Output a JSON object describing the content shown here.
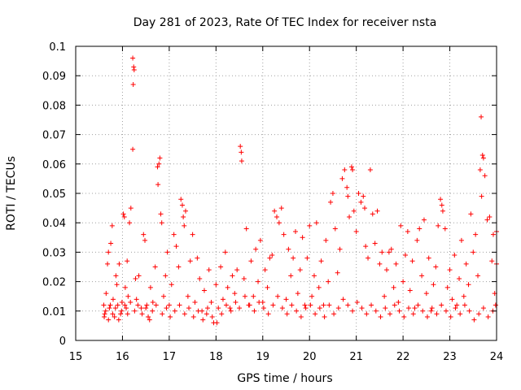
{
  "chart_data": {
    "type": "scatter",
    "title": "Day 281 of 2023, Rate Of TEC Index for receiver nsta",
    "xlabel": "GPS time / hours",
    "ylabel": "ROTI / TECUs",
    "xlim": [
      15,
      24
    ],
    "ylim": [
      0,
      0.1
    ],
    "x_ticks": [
      "15",
      "16",
      "17",
      "18",
      "19",
      "20",
      "21",
      "22",
      "23",
      "24"
    ],
    "y_ticks": [
      "0",
      "0.01",
      "0.02",
      "0.03",
      "0.04",
      "0.05",
      "0.06",
      "0.07",
      "0.08",
      "0.09",
      "0.1"
    ],
    "grid": true,
    "marker": "plus",
    "color": "#ff0000",
    "series": [
      {
        "points": [
          [
            15.6,
            0.012
          ],
          [
            15.62,
            0.009
          ],
          [
            15.65,
            0.016
          ],
          [
            15.68,
            0.026
          ],
          [
            15.7,
            0.03
          ],
          [
            15.72,
            0.011
          ],
          [
            15.75,
            0.033
          ],
          [
            15.78,
            0.039
          ],
          [
            15.8,
            0.014
          ],
          [
            15.83,
            0.008
          ],
          [
            15.86,
            0.022
          ],
          [
            15.88,
            0.019
          ],
          [
            15.9,
            0.012
          ],
          [
            15.93,
            0.026
          ],
          [
            15.96,
            0.009
          ],
          [
            15.99,
            0.013
          ],
          [
            16.02,
            0.043
          ],
          [
            16.04,
            0.042
          ],
          [
            16.06,
            0.018
          ],
          [
            16.08,
            0.011
          ],
          [
            16.1,
            0.027
          ],
          [
            16.12,
            0.015
          ],
          [
            16.15,
            0.04
          ],
          [
            16.18,
            0.045
          ],
          [
            16.22,
            0.096
          ],
          [
            16.24,
            0.093
          ],
          [
            16.25,
            0.092
          ],
          [
            16.23,
            0.087
          ],
          [
            16.22,
            0.065
          ],
          [
            16.28,
            0.021
          ],
          [
            16.3,
            0.014
          ],
          [
            16.35,
            0.022
          ],
          [
            16.4,
            0.011
          ],
          [
            16.45,
            0.036
          ],
          [
            16.48,
            0.034
          ],
          [
            16.52,
            0.012
          ],
          [
            16.55,
            0.008
          ],
          [
            16.6,
            0.018
          ],
          [
            16.65,
            0.013
          ],
          [
            16.7,
            0.025
          ],
          [
            16.75,
            0.059
          ],
          [
            16.78,
            0.06
          ],
          [
            16.8,
            0.062
          ],
          [
            16.76,
            0.053
          ],
          [
            16.82,
            0.043
          ],
          [
            16.84,
            0.04
          ],
          [
            16.88,
            0.015
          ],
          [
            16.92,
            0.022
          ],
          [
            16.96,
            0.03
          ],
          [
            17.0,
            0.012
          ],
          [
            17.05,
            0.019
          ],
          [
            17.1,
            0.036
          ],
          [
            17.15,
            0.032
          ],
          [
            17.2,
            0.025
          ],
          [
            17.25,
            0.048
          ],
          [
            17.28,
            0.046
          ],
          [
            17.3,
            0.042
          ],
          [
            17.32,
            0.039
          ],
          [
            17.35,
            0.044
          ],
          [
            17.4,
            0.015
          ],
          [
            17.45,
            0.027
          ],
          [
            17.5,
            0.036
          ],
          [
            17.55,
            0.013
          ],
          [
            17.6,
            0.028
          ],
          [
            17.65,
            0.021
          ],
          [
            17.7,
            0.01
          ],
          [
            17.75,
            0.017
          ],
          [
            17.8,
            0.009
          ],
          [
            17.85,
            0.024
          ],
          [
            17.9,
            0.013
          ],
          [
            17.95,
            0.006
          ],
          [
            18.0,
            0.019
          ],
          [
            18.05,
            0.011
          ],
          [
            18.1,
            0.025
          ],
          [
            18.15,
            0.014
          ],
          [
            18.2,
            0.03
          ],
          [
            18.25,
            0.018
          ],
          [
            18.3,
            0.011
          ],
          [
            18.35,
            0.022
          ],
          [
            18.4,
            0.016
          ],
          [
            18.45,
            0.024
          ],
          [
            18.52,
            0.066
          ],
          [
            18.54,
            0.064
          ],
          [
            18.55,
            0.061
          ],
          [
            18.6,
            0.021
          ],
          [
            18.65,
            0.038
          ],
          [
            18.7,
            0.012
          ],
          [
            18.75,
            0.027
          ],
          [
            18.8,
            0.015
          ],
          [
            18.85,
            0.031
          ],
          [
            18.9,
            0.02
          ],
          [
            18.95,
            0.034
          ],
          [
            19.0,
            0.013
          ],
          [
            19.05,
            0.024
          ],
          [
            19.1,
            0.018
          ],
          [
            19.15,
            0.028
          ],
          [
            19.2,
            0.029
          ],
          [
            19.25,
            0.044
          ],
          [
            19.3,
            0.042
          ],
          [
            19.35,
            0.04
          ],
          [
            19.4,
            0.045
          ],
          [
            19.45,
            0.036
          ],
          [
            19.5,
            0.014
          ],
          [
            19.55,
            0.031
          ],
          [
            19.6,
            0.022
          ],
          [
            19.65,
            0.028
          ],
          [
            19.7,
            0.037
          ],
          [
            19.75,
            0.016
          ],
          [
            19.8,
            0.024
          ],
          [
            19.85,
            0.035
          ],
          [
            19.9,
            0.012
          ],
          [
            19.95,
            0.028
          ],
          [
            20.0,
            0.039
          ],
          [
            20.05,
            0.015
          ],
          [
            20.1,
            0.022
          ],
          [
            20.15,
            0.04
          ],
          [
            20.2,
            0.018
          ],
          [
            20.25,
            0.027
          ],
          [
            20.3,
            0.012
          ],
          [
            20.35,
            0.034
          ],
          [
            20.4,
            0.02
          ],
          [
            20.45,
            0.047
          ],
          [
            20.5,
            0.05
          ],
          [
            20.55,
            0.038
          ],
          [
            20.6,
            0.023
          ],
          [
            20.65,
            0.031
          ],
          [
            20.7,
            0.055
          ],
          [
            20.75,
            0.058
          ],
          [
            20.8,
            0.052
          ],
          [
            20.82,
            0.049
          ],
          [
            20.85,
            0.042
          ],
          [
            20.9,
            0.059
          ],
          [
            20.92,
            0.058
          ],
          [
            20.95,
            0.044
          ],
          [
            21.0,
            0.037
          ],
          [
            21.05,
            0.05
          ],
          [
            21.1,
            0.047
          ],
          [
            21.15,
            0.049
          ],
          [
            21.18,
            0.045
          ],
          [
            21.2,
            0.032
          ],
          [
            21.25,
            0.028
          ],
          [
            21.3,
            0.058
          ],
          [
            21.35,
            0.043
          ],
          [
            21.4,
            0.033
          ],
          [
            21.45,
            0.044
          ],
          [
            21.5,
            0.026
          ],
          [
            21.55,
            0.03
          ],
          [
            21.6,
            0.015
          ],
          [
            21.65,
            0.024
          ],
          [
            21.7,
            0.03
          ],
          [
            21.75,
            0.031
          ],
          [
            21.8,
            0.018
          ],
          [
            21.85,
            0.026
          ],
          [
            21.9,
            0.013
          ],
          [
            21.95,
            0.039
          ],
          [
            22.0,
            0.02
          ],
          [
            22.05,
            0.029
          ],
          [
            22.1,
            0.037
          ],
          [
            22.15,
            0.017
          ],
          [
            22.2,
            0.027
          ],
          [
            22.25,
            0.011
          ],
          [
            22.3,
            0.034
          ],
          [
            22.35,
            0.038
          ],
          [
            22.4,
            0.022
          ],
          [
            22.45,
            0.041
          ],
          [
            22.5,
            0.016
          ],
          [
            22.55,
            0.028
          ],
          [
            22.6,
            0.01
          ],
          [
            22.65,
            0.019
          ],
          [
            22.7,
            0.025
          ],
          [
            22.75,
            0.039
          ],
          [
            22.8,
            0.048
          ],
          [
            22.83,
            0.046
          ],
          [
            22.85,
            0.044
          ],
          [
            22.9,
            0.038
          ],
          [
            22.95,
            0.018
          ],
          [
            23.0,
            0.024
          ],
          [
            23.05,
            0.014
          ],
          [
            23.1,
            0.029
          ],
          [
            23.15,
            0.012
          ],
          [
            23.2,
            0.021
          ],
          [
            23.25,
            0.034
          ],
          [
            23.3,
            0.015
          ],
          [
            23.35,
            0.026
          ],
          [
            23.4,
            0.019
          ],
          [
            23.45,
            0.043
          ],
          [
            23.5,
            0.03
          ],
          [
            23.55,
            0.036
          ],
          [
            23.6,
            0.022
          ],
          [
            23.65,
            0.058
          ],
          [
            23.67,
            0.076
          ],
          [
            23.7,
            0.063
          ],
          [
            23.72,
            0.062
          ],
          [
            23.68,
            0.049
          ],
          [
            23.75,
            0.056
          ],
          [
            23.8,
            0.041
          ],
          [
            23.85,
            0.042
          ],
          [
            23.9,
            0.027
          ],
          [
            23.93,
            0.036
          ],
          [
            23.96,
            0.016
          ],
          [
            15.61,
            0.008
          ],
          [
            15.64,
            0.01
          ],
          [
            15.7,
            0.007
          ],
          [
            15.74,
            0.012
          ],
          [
            15.79,
            0.009
          ],
          [
            15.85,
            0.011
          ],
          [
            15.92,
            0.007
          ],
          [
            15.98,
            0.01
          ],
          [
            16.05,
            0.012
          ],
          [
            16.11,
            0.009
          ],
          [
            16.17,
            0.013
          ],
          [
            16.26,
            0.01
          ],
          [
            16.33,
            0.012
          ],
          [
            16.42,
            0.009
          ],
          [
            16.5,
            0.011
          ],
          [
            16.58,
            0.007
          ],
          [
            16.64,
            0.01
          ],
          [
            16.72,
            0.012
          ],
          [
            16.85,
            0.009
          ],
          [
            16.94,
            0.011
          ],
          [
            17.02,
            0.008
          ],
          [
            17.12,
            0.01
          ],
          [
            17.22,
            0.012
          ],
          [
            17.33,
            0.009
          ],
          [
            17.42,
            0.011
          ],
          [
            17.52,
            0.008
          ],
          [
            17.62,
            0.01
          ],
          [
            17.72,
            0.007
          ],
          [
            17.82,
            0.011
          ],
          [
            17.92,
            0.008
          ],
          [
            18.02,
            0.006
          ],
          [
            18.12,
            0.009
          ],
          [
            18.22,
            0.012
          ],
          [
            18.32,
            0.01
          ],
          [
            18.42,
            0.013
          ],
          [
            18.5,
            0.011
          ],
          [
            18.62,
            0.015
          ],
          [
            18.72,
            0.012
          ],
          [
            18.82,
            0.01
          ],
          [
            18.92,
            0.013
          ],
          [
            19.02,
            0.011
          ],
          [
            19.12,
            0.009
          ],
          [
            19.22,
            0.012
          ],
          [
            19.32,
            0.015
          ],
          [
            19.42,
            0.011
          ],
          [
            19.52,
            0.009
          ],
          [
            19.62,
            0.012
          ],
          [
            19.72,
            0.01
          ],
          [
            19.82,
            0.008
          ],
          [
            19.92,
            0.011
          ],
          [
            20.02,
            0.012
          ],
          [
            20.12,
            0.009
          ],
          [
            20.22,
            0.011
          ],
          [
            20.32,
            0.008
          ],
          [
            20.42,
            0.012
          ],
          [
            20.52,
            0.009
          ],
          [
            20.62,
            0.011
          ],
          [
            20.72,
            0.014
          ],
          [
            20.82,
            0.012
          ],
          [
            20.92,
            0.01
          ],
          [
            21.02,
            0.013
          ],
          [
            21.12,
            0.011
          ],
          [
            21.22,
            0.009
          ],
          [
            21.32,
            0.012
          ],
          [
            21.42,
            0.01
          ],
          [
            21.52,
            0.008
          ],
          [
            21.62,
            0.011
          ],
          [
            21.72,
            0.009
          ],
          [
            21.82,
            0.012
          ],
          [
            21.92,
            0.01
          ],
          [
            22.02,
            0.008
          ],
          [
            22.12,
            0.011
          ],
          [
            22.22,
            0.009
          ],
          [
            22.32,
            0.012
          ],
          [
            22.42,
            0.01
          ],
          [
            22.52,
            0.008
          ],
          [
            22.62,
            0.011
          ],
          [
            22.72,
            0.009
          ],
          [
            22.82,
            0.012
          ],
          [
            22.92,
            0.01
          ],
          [
            23.02,
            0.008
          ],
          [
            23.12,
            0.011
          ],
          [
            23.22,
            0.009
          ],
          [
            23.32,
            0.012
          ],
          [
            23.42,
            0.01
          ],
          [
            23.52,
            0.007
          ],
          [
            23.62,
            0.009
          ],
          [
            23.72,
            0.011
          ],
          [
            23.82,
            0.008
          ],
          [
            23.92,
            0.01
          ],
          [
            23.98,
            0.012
          ],
          [
            24.0,
            0.026
          ],
          [
            24.0,
            0.037
          ]
        ]
      }
    ]
  }
}
